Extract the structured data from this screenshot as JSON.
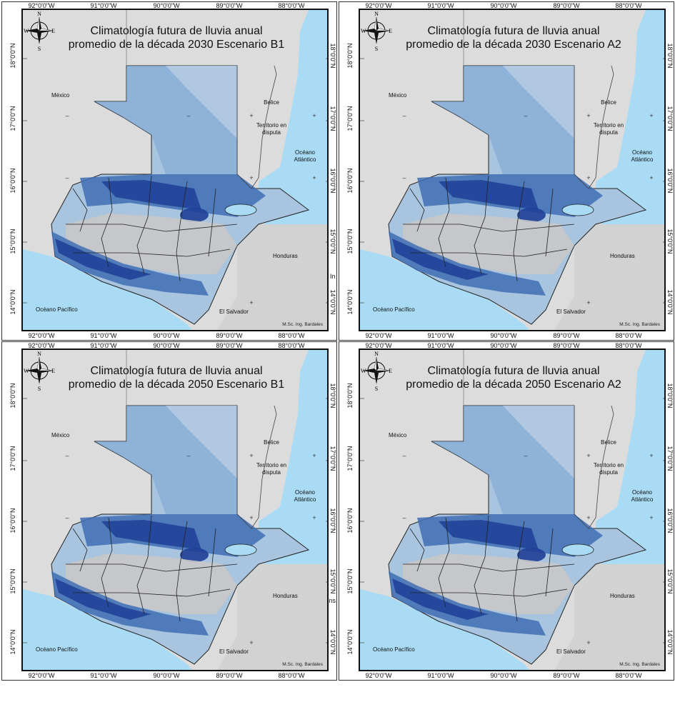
{
  "panels": [
    {
      "title_line1": "Climatología futura de lluvia anual",
      "title_line2": "promedio de la década 2030 Escenario B1"
    },
    {
      "title_line1": "Climatología futura de lluvia anual",
      "title_line2": "promedio de la década 2030 Escenario A2"
    },
    {
      "title_line1": "Climatología futura de lluvia anual",
      "title_line2": "promedio de la década 2050 Escenario B1"
    },
    {
      "title_line1": "Climatología futura de lluvia anual",
      "title_line2": "promedio de la década 2050 Escenario A2"
    }
  ],
  "labels": {
    "mexico": "México",
    "belice": "Belice",
    "territorio_line1": "Territorio en",
    "territorio_line2": "disputa",
    "atlantico_line1": "Océano",
    "atlantico_line2": "Atlántico",
    "honduras": "Honduras",
    "el_salvador": "El Salvador",
    "pacifico": "Océano Pacífico",
    "credit": "M.Sc. Ing. Bardales"
  },
  "compass": {
    "n": "N",
    "s": "S",
    "e": "E",
    "w": "W"
  },
  "longitude_ticks": [
    "92°0'0\"W",
    "91°0'0\"W",
    "90°0'0\"W",
    "89°0'0\"W",
    "88°0'0\"W"
  ],
  "latitude_ticks": [
    "18°0'0\"N",
    "17°0'0\"N",
    "16°0'0\"N",
    "15°0'0\"N",
    "14°0'0\"N"
  ],
  "edge_text": {
    "right_1": "In",
    "right_3": "Ins"
  },
  "colors": {
    "ocean": "#a9dcf4",
    "land": "#dcdcdc",
    "rain_light": "#a8c4df",
    "rain_mid": "#6f9ccd",
    "rain_high": "#3f6eb5",
    "rain_max": "#1f3f96"
  }
}
